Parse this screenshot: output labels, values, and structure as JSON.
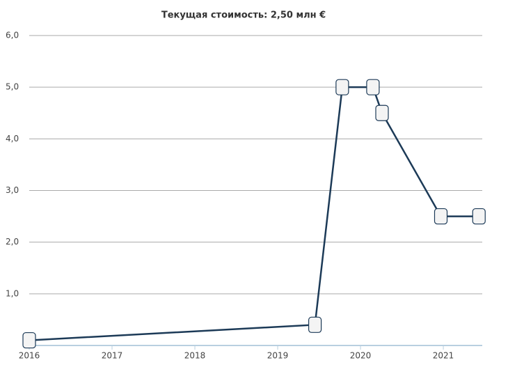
{
  "chart_data": {
    "type": "line",
    "title": "Текущая стоимость: 2,50 млн €",
    "x": [
      2016.0,
      2019.45,
      2019.78,
      2020.15,
      2020.26,
      2020.97,
      2021.43
    ],
    "series": [
      {
        "color": "#1c3a57",
        "values": [
          0.1,
          0.4,
          5.0,
          5.0,
          4.5,
          2.5,
          2.5
        ]
      }
    ],
    "xlim": [
      2016,
      2021.47
    ],
    "xticks": [
      2016,
      2017,
      2018,
      2019,
      2020,
      2021
    ],
    "ylim": [
      0,
      6
    ],
    "yticks": [
      {
        "value": 1,
        "label": "1,0"
      },
      {
        "value": 2,
        "label": "2,0"
      },
      {
        "value": 3,
        "label": "3,0"
      },
      {
        "value": 4,
        "label": "4,0"
      },
      {
        "value": 5,
        "label": "5,0"
      },
      {
        "value": 6,
        "label": "6,0"
      }
    ],
    "grid": true
  }
}
